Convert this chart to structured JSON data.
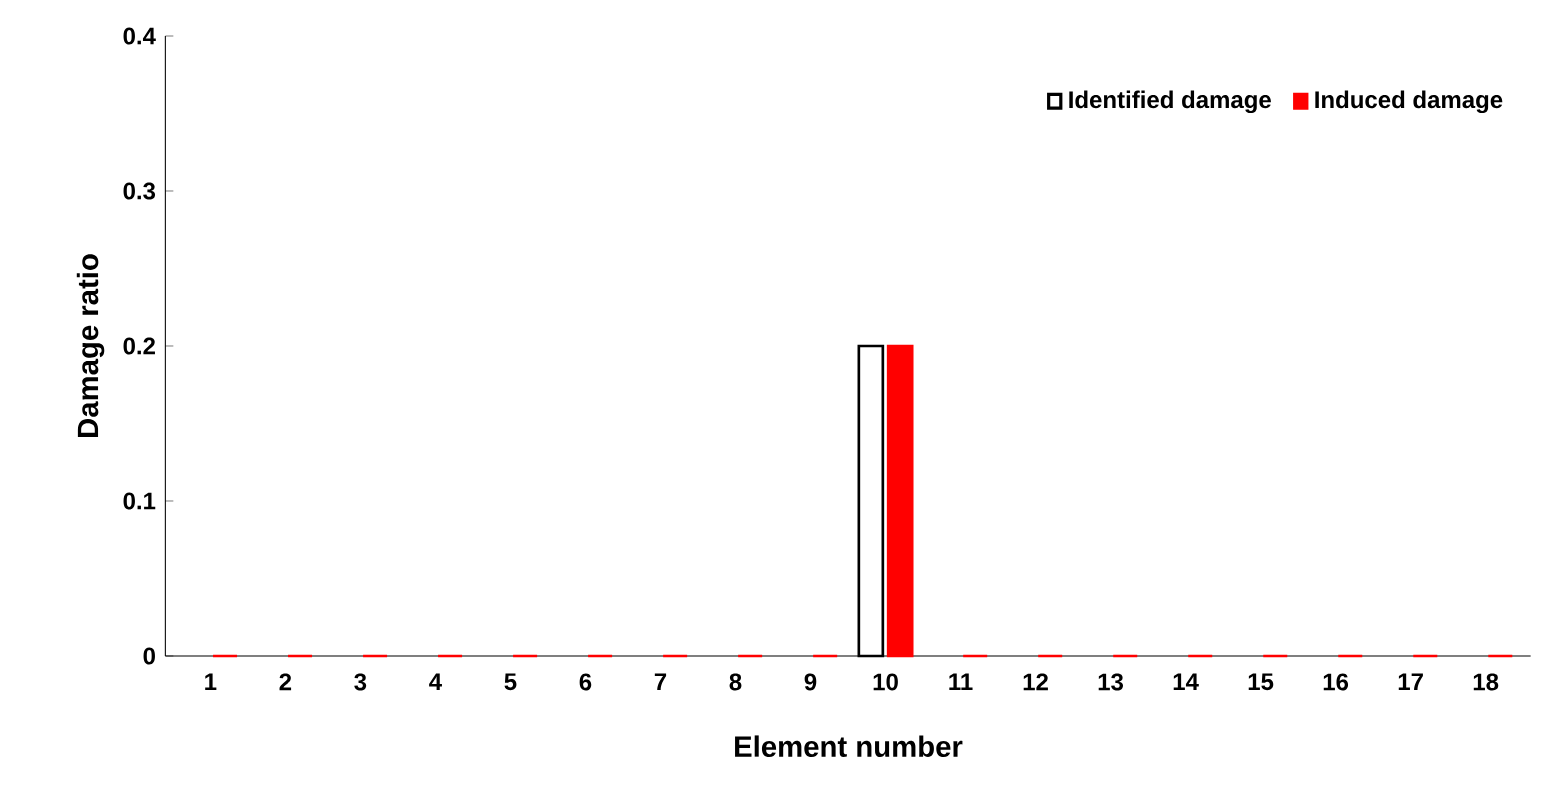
{
  "chart_data": {
    "type": "bar",
    "xlabel": "Element number",
    "ylabel": "Damage ratio",
    "categories": [
      "1",
      "2",
      "3",
      "4",
      "5",
      "6",
      "7",
      "8",
      "9",
      "10",
      "11",
      "12",
      "13",
      "14",
      "15",
      "16",
      "17",
      "18"
    ],
    "series": [
      {
        "name": "Identified damage",
        "color": "#ffffff",
        "values": [
          0,
          0,
          0,
          0,
          0,
          0,
          0,
          0,
          0,
          0.2,
          0,
          0,
          0,
          0,
          0,
          0,
          0,
          0
        ]
      },
      {
        "name": "Induced damage",
        "color": "#ff0000",
        "values": [
          0,
          0,
          0,
          0,
          0,
          0,
          0,
          0,
          0,
          0.2,
          0,
          0,
          0,
          0,
          0,
          0,
          0,
          0
        ]
      }
    ],
    "ylim": [
      0,
      0.4
    ],
    "yticks": [
      0,
      0.1,
      0.2,
      0.3,
      0.4
    ],
    "legend": "top right",
    "grid": false
  }
}
